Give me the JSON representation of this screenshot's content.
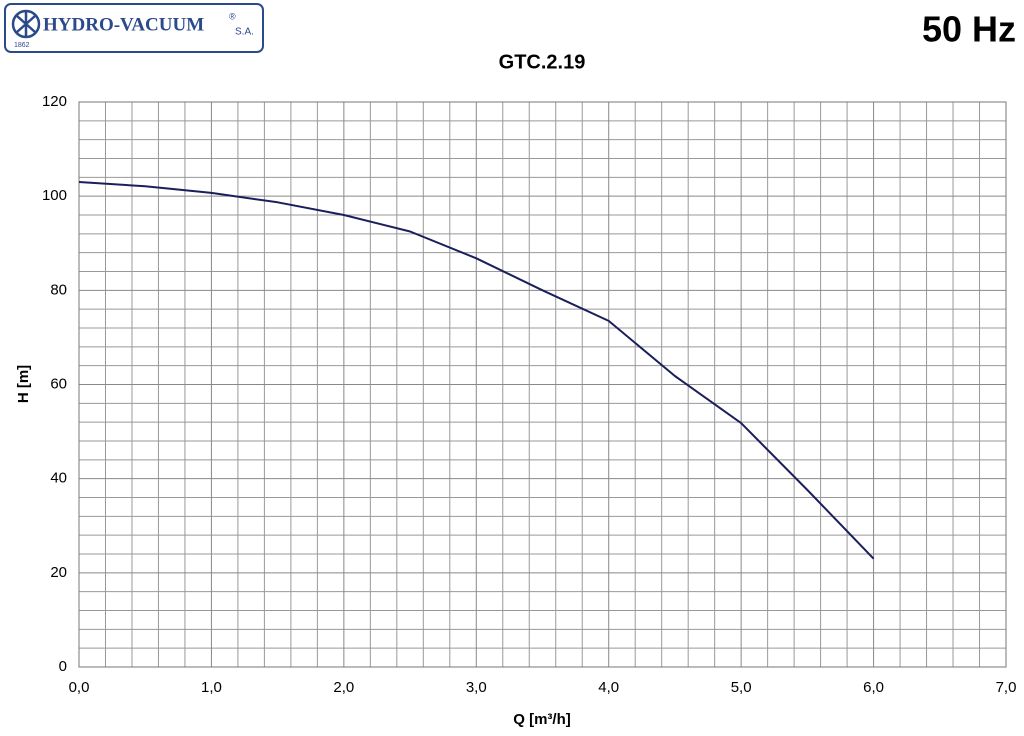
{
  "header": {
    "brand": "HYDRO-VACUUM",
    "registered": "®",
    "suffix": "S.A.",
    "year": "1862",
    "frequency": "50 Hz"
  },
  "chart_data": {
    "type": "line",
    "title": "GTC.2.19",
    "x_label": "Q  [m³/h]",
    "y_label": "H  [m]",
    "x": [
      0.0,
      0.5,
      1.0,
      1.5,
      2.0,
      2.5,
      3.0,
      3.5,
      4.0,
      4.5,
      5.0,
      5.5,
      6.0
    ],
    "series": [
      {
        "color": "#1a1f5c",
        "values": [
          103,
          102.1,
          100.7,
          98.7,
          96,
          92.5,
          86.8,
          80,
          73.5,
          61.8,
          51.8,
          37.6,
          23
        ]
      }
    ],
    "xlim": [
      0,
      7
    ],
    "ylim": [
      0,
      120
    ],
    "xticks": [
      {
        "value": 0,
        "label": "0,0"
      },
      {
        "value": 1,
        "label": "1,0"
      },
      {
        "value": 2,
        "label": "2,0"
      },
      {
        "value": 3,
        "label": "3,0"
      },
      {
        "value": 4,
        "label": "4,0"
      },
      {
        "value": 5,
        "label": "5,0"
      },
      {
        "value": 6,
        "label": "6,0"
      },
      {
        "value": 7,
        "label": "7,0"
      }
    ],
    "yticks": [
      0,
      20,
      40,
      60,
      80,
      100,
      120
    ],
    "grid": true
  }
}
